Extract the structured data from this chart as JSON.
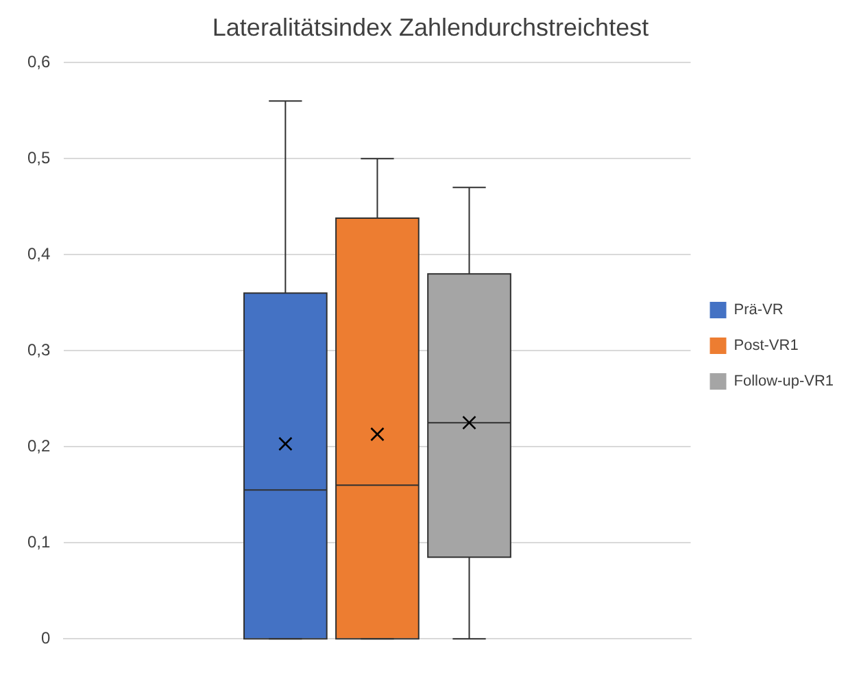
{
  "chart_data": {
    "type": "box",
    "title": "Lateralitätsindex Zahlendurchstreichtest",
    "categories": [
      null
    ],
    "series": [
      {
        "name": "Prä-VR",
        "color": "#4472c4",
        "boxes": [
          {
            "low": 0,
            "q1": 0,
            "median": 0.155,
            "q3": 0.36,
            "high": 0.56,
            "mean": 0.203
          }
        ]
      },
      {
        "name": "Post-VR1",
        "color": "#ed7d31",
        "boxes": [
          {
            "low": 0,
            "q1": 0,
            "median": 0.16,
            "q3": 0.438,
            "high": 0.5,
            "mean": 0.213
          }
        ]
      },
      {
        "name": "Follow-up-VR1",
        "color": "#a5a5a5",
        "boxes": [
          {
            "low": 0,
            "q1": 0.085,
            "median": 0.225,
            "q3": 0.38,
            "high": 0.47,
            "mean": 0.225
          }
        ]
      }
    ],
    "ylim": [
      0,
      0.6
    ],
    "yticks": [
      0,
      {
        "value": 0.1,
        "label": "0,1"
      },
      {
        "value": 0.2,
        "label": "0,2"
      },
      {
        "value": 0.3,
        "label": "0,3"
      },
      {
        "value": 0.4,
        "label": "0,4"
      },
      {
        "value": 0.5,
        "label": "0,5"
      },
      {
        "value": 0.6,
        "label": "0,6"
      }
    ],
    "grid": "y",
    "legend": "right"
  }
}
